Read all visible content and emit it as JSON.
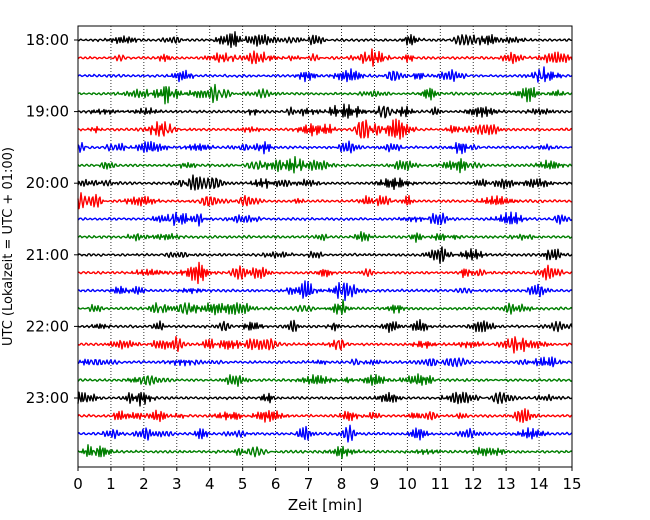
{
  "chart_data": {
    "type": "line",
    "title": "",
    "xlabel": "Zeit  [min]",
    "ylabel": "UTC (Lokalzeit = UTC + 01:00)",
    "xlim": [
      0,
      15
    ],
    "xticks": [
      "0",
      "1",
      "2",
      "3",
      "4",
      "5",
      "6",
      "7",
      "8",
      "9",
      "10",
      "11",
      "12",
      "13",
      "14",
      "15"
    ],
    "ytick_labels": [
      "18:00",
      "19:00",
      "20:00",
      "21:00",
      "22:00",
      "23:00"
    ],
    "start_time": "18:00",
    "end_time": "24:00",
    "trace_minutes": 15,
    "trace_colors": [
      "#000000",
      "#ff0000",
      "#0000ff",
      "#007f00"
    ],
    "grid": "vertical dotted",
    "trace_count": 24
  }
}
